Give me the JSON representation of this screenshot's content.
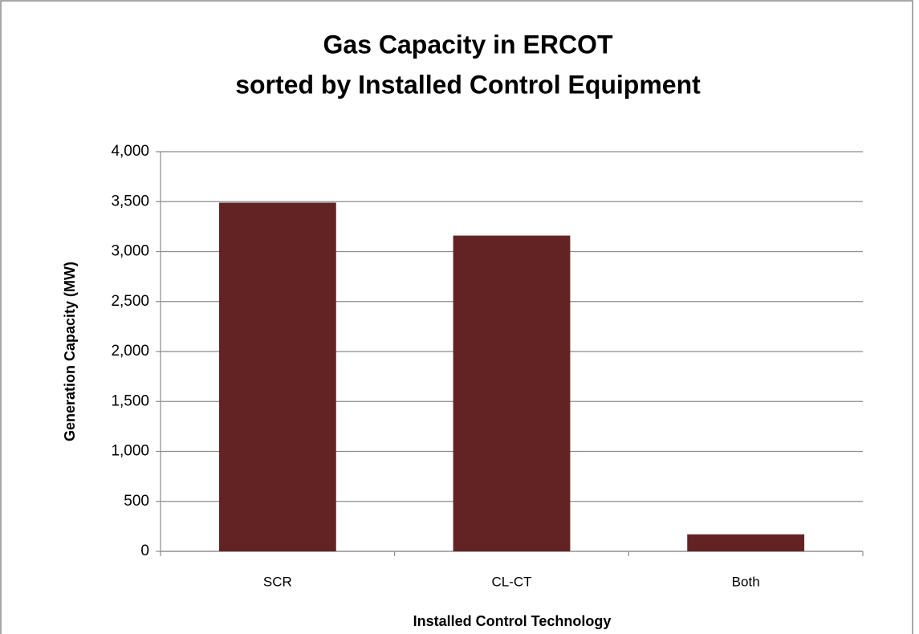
{
  "chart_data": {
    "type": "bar",
    "title": [
      "Gas Capacity in ERCOT",
      "sorted by Installed Control Equipment"
    ],
    "x_label": "Installed Control Technology",
    "y_label": "Generation Capacity (MW)",
    "categories": [
      "SCR",
      "CL-CT",
      "Both"
    ],
    "values": [
      3490,
      3160,
      170
    ],
    "color": "#632325",
    "ylim": [
      0,
      4000
    ],
    "yticks": [
      0,
      500,
      {
        "value": 1000,
        "label": "1,000"
      },
      {
        "value": 1500,
        "label": "1,500"
      },
      {
        "value": 2000,
        "label": "2,000"
      },
      {
        "value": 2500,
        "label": "2,500"
      },
      {
        "value": 3000,
        "label": "3,000"
      },
      {
        "value": 3500,
        "label": "3,500"
      },
      {
        "value": 4000,
        "label": "4,000"
      }
    ],
    "grid": true
  }
}
